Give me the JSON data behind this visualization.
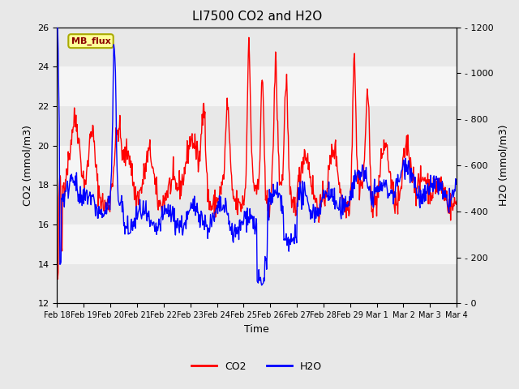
{
  "title": "LI7500 CO2 and H2O",
  "xlabel": "Time",
  "ylabel_left": "CO2 (mmol/m3)",
  "ylabel_right": "H2O (mmol/m3)",
  "ylim_left": [
    12,
    26
  ],
  "ylim_right": [
    0,
    1200
  ],
  "yticks_left": [
    12,
    14,
    16,
    18,
    20,
    22,
    24,
    26
  ],
  "yticks_right": [
    0,
    200,
    400,
    600,
    800,
    1000,
    1200
  ],
  "x_tick_labels": [
    "Feb 18",
    "Feb 19",
    "Feb 20",
    "Feb 21",
    "Feb 22",
    "Feb 23",
    "Feb 24",
    "Feb 25",
    "Feb 26",
    "Feb 27",
    "Feb 28",
    "Feb 29",
    "Mar 1",
    "Mar 2",
    "Mar 3",
    "Mar 4"
  ],
  "co2_color": "#FF0000",
  "h2o_color": "#0000FF",
  "fig_bg_color": "#E8E8E8",
  "plot_bg_color": "#E8E8E8",
  "stripe_light_color": "#F5F5F5",
  "legend_co2": "CO2",
  "legend_h2o": "H2O",
  "mb_flux_label": "MB_flux",
  "mb_flux_text_color": "#8B0000",
  "mb_flux_bg_color": "#FFFF99",
  "mb_flux_edge_color": "#AAAA00",
  "title_fontsize": 11,
  "axis_fontsize": 9,
  "tick_fontsize": 8,
  "legend_fontsize": 9,
  "linewidth": 1.0
}
